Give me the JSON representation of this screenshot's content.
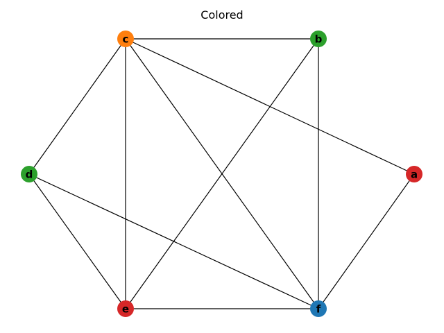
{
  "title": "Colored",
  "graph": {
    "nodes": [
      {
        "id": "a",
        "label": "a",
        "color": "#d62728"
      },
      {
        "id": "b",
        "label": "b",
        "color": "#2ca02c"
      },
      {
        "id": "c",
        "label": "c",
        "color": "#ff7f0e"
      },
      {
        "id": "d",
        "label": "d",
        "color": "#2ca02c"
      },
      {
        "id": "e",
        "label": "e",
        "color": "#d62728"
      },
      {
        "id": "f",
        "label": "f",
        "color": "#1f77b4"
      }
    ],
    "edges": [
      [
        "c",
        "b"
      ],
      [
        "c",
        "a"
      ],
      [
        "c",
        "d"
      ],
      [
        "c",
        "e"
      ],
      [
        "c",
        "f"
      ],
      [
        "b",
        "e"
      ],
      [
        "b",
        "f"
      ],
      [
        "a",
        "f"
      ],
      [
        "d",
        "e"
      ],
      [
        "d",
        "f"
      ],
      [
        "e",
        "f"
      ]
    ]
  }
}
